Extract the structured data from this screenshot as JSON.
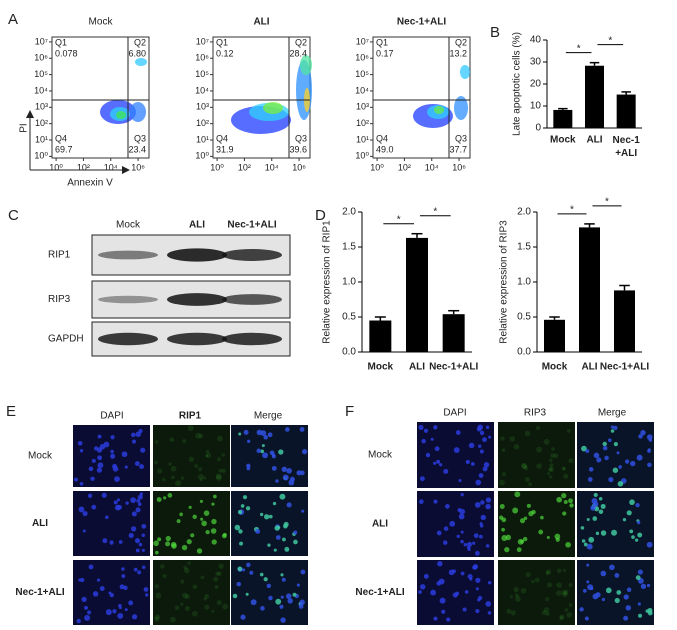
{
  "panel_labels": [
    "A",
    "B",
    "C",
    "D",
    "E",
    "F"
  ],
  "flow": {
    "ylabel": "PI",
    "xlabel": "Annexin V",
    "xlim": [
      -0.3,
      6.8
    ],
    "ylim": [
      -0.1,
      7.3
    ],
    "xticks": [
      {
        "value": 0,
        "label": "10⁰"
      },
      {
        "value": 2,
        "label": "10²"
      },
      {
        "value": 4,
        "label": "10⁴"
      },
      {
        "value": 6,
        "label": "10⁶"
      }
    ],
    "yticks": [
      {
        "value": 0,
        "label": "10⁰"
      },
      {
        "value": 1,
        "label": "10¹"
      },
      {
        "value": 2,
        "label": "10²"
      },
      {
        "value": 3,
        "label": "10³"
      },
      {
        "value": 4,
        "label": "10⁴"
      },
      {
        "value": 5,
        "label": "10⁵"
      },
      {
        "value": 6,
        "label": "10⁶"
      },
      {
        "value": 7,
        "label": "10⁷"
      }
    ],
    "plots": [
      {
        "title": "Mock",
        "quadrants": [
          {
            "name": "Q1",
            "value": "0.078"
          },
          {
            "name": "Q2",
            "value": "6.80"
          },
          {
            "name": "Q3",
            "value": "23.4"
          },
          {
            "name": "Q4",
            "value": "69.7"
          }
        ]
      },
      {
        "title": "ALI",
        "quadrants": [
          {
            "name": "Q1",
            "value": "0.12"
          },
          {
            "name": "Q2",
            "value": "28.4"
          },
          {
            "name": "Q3",
            "value": "39.6"
          },
          {
            "name": "Q4",
            "value": "31.9"
          }
        ]
      },
      {
        "title": "Nec-1+ALI",
        "quadrants": [
          {
            "name": "Q1",
            "value": "0.17"
          },
          {
            "name": "Q2",
            "value": "13.2"
          },
          {
            "name": "Q3",
            "value": "37.7"
          },
          {
            "name": "Q4",
            "value": "49.0"
          }
        ]
      }
    ]
  },
  "chart_data": [
    {
      "type": "bar",
      "ylabel": "Late apoptotic cells (%)",
      "categories": [
        "Mock",
        "ALI",
        "Nec-1\n+ALI"
      ],
      "values": [
        8.2,
        28.3,
        15.2
      ],
      "errors": [
        0.6,
        1.4,
        1.2
      ],
      "color": "#000000",
      "ylim": [
        0,
        40
      ],
      "yticks": [
        0,
        10,
        20,
        30,
        40
      ],
      "annotations": [
        "*",
        "*"
      ]
    },
    {
      "type": "bar",
      "ylabel": "Relative expression of RIP1",
      "categories": [
        "Mock",
        "ALI",
        "Nec-1+ALI"
      ],
      "values": [
        0.45,
        1.63,
        0.54
      ],
      "errors": [
        0.05,
        0.06,
        0.05
      ],
      "color": "#000000",
      "ylim": [
        0,
        2
      ],
      "yticks": [
        {
          "value": 0,
          "label": "0.0"
        },
        {
          "value": 0.5,
          "label": "0.5"
        },
        {
          "value": 1,
          "label": "1.0"
        },
        {
          "value": 1.5,
          "label": "1.5"
        },
        {
          "value": 2,
          "label": "2.0"
        }
      ],
      "annotations": [
        "*",
        "*"
      ]
    },
    {
      "type": "bar",
      "ylabel": "Relative expression of RIP3",
      "categories": [
        "Mock",
        "ALI",
        "Nec-1+ALI"
      ],
      "values": [
        0.46,
        1.78,
        0.88
      ],
      "errors": [
        0.04,
        0.05,
        0.07
      ],
      "color": "#000000",
      "ylim": [
        0,
        2
      ],
      "yticks": [
        {
          "value": 0,
          "label": "0.0"
        },
        {
          "value": 0.5,
          "label": "0.5"
        },
        {
          "value": 1,
          "label": "1.0"
        },
        {
          "value": 1.5,
          "label": "1.5"
        },
        {
          "value": 2,
          "label": "2.0"
        }
      ],
      "annotations": [
        "*",
        "*"
      ]
    }
  ],
  "blot": {
    "columns": [
      "Mock",
      "ALI",
      "Nec-1+ALI"
    ],
    "rows": [
      "RIP1",
      "RIP3",
      "GAPDH"
    ]
  },
  "if_e": {
    "columns": [
      "DAPI",
      "RIP1",
      "Merge"
    ],
    "rows": [
      "Mock",
      "ALI",
      "Nec-1+ALI"
    ]
  },
  "if_f": {
    "columns": [
      "DAPI",
      "RIP3",
      "Merge"
    ],
    "rows": [
      "Mock",
      "ALI",
      "Nec-1+ALI"
    ]
  }
}
